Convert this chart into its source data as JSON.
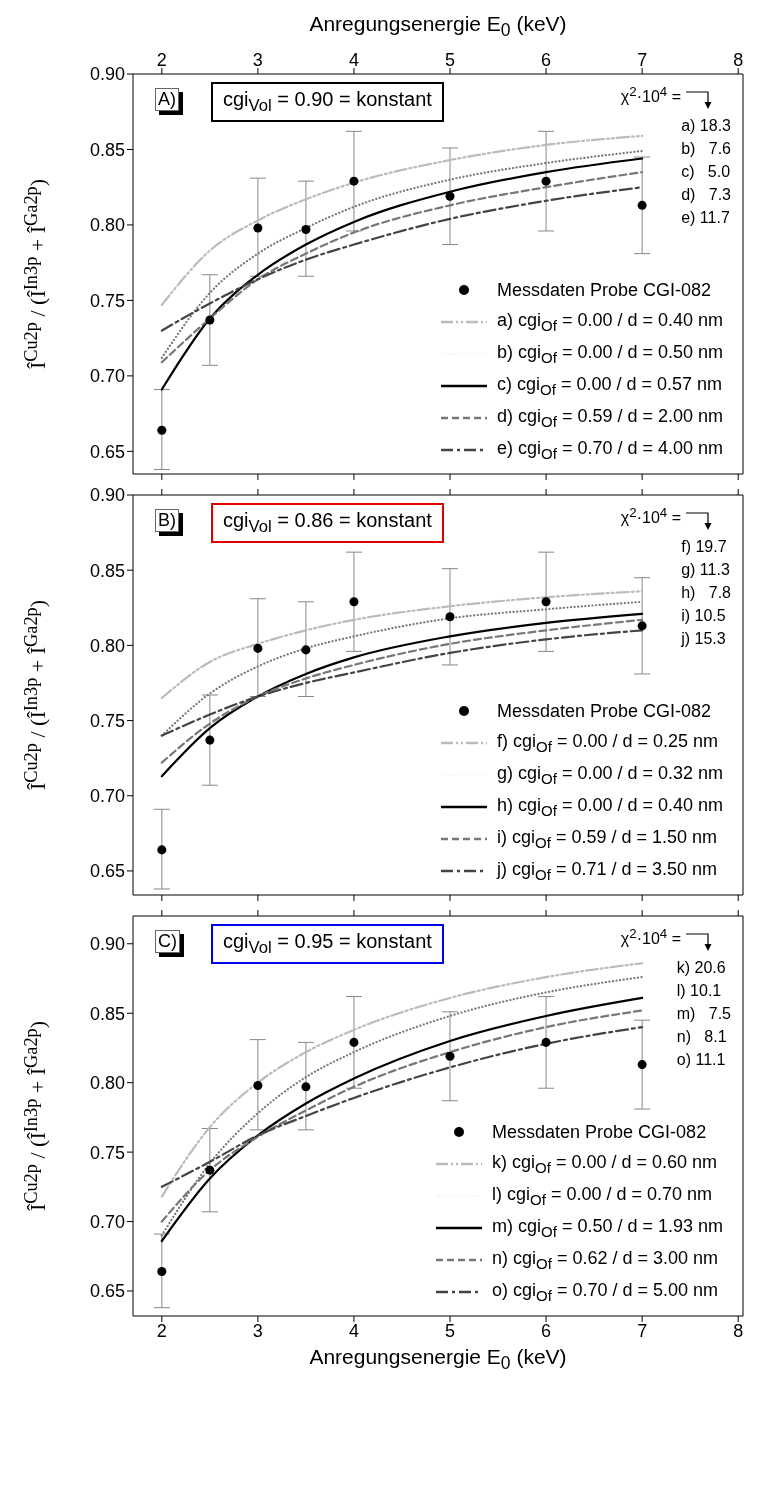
{
  "chart_data": [
    {
      "type": "line",
      "ylabel": "Î$^{Cu2p}$ / (Î$^{In3p}$ + Î$^{Ga2p}$)",
      "x2label": "Anregungsenergie E$_{0}$ (keV)",
      "xlim": [
        1.7,
        8.05
      ],
      "xticks": [
        2,
        3,
        4,
        5,
        6,
        7,
        8
      ],
      "x2lim": [
        1.7,
        8.05
      ],
      "x2ticks": [
        2,
        3,
        4,
        5,
        6,
        7,
        8
      ],
      "tick_labels": "y",
      "ylim": [
        0.635,
        0.9
      ],
      "yticks": [
        0.65,
        {
          "value": 0.7,
          "label": "0.70"
        },
        0.75,
        {
          "value": 0.8,
          "label": "0.80"
        },
        0.85,
        {
          "value": 0.9,
          "label": "0.90"
        }
      ],
      "legend": "bottom right",
      "annotations": [
        "A)",
        "cgi$_{Vol}$ = 0.90 = konstant",
        "χ$^{2}$·10$^{4}$ =",
        "a) 18.3",
        "b)   7.6",
        "c)   5.0",
        "d)   7.3",
        "e) 11.7"
      ],
      "series": [
        {
          "name": "Messdaten Probe CGI-082",
          "type": "scatter",
          "marker": "circle",
          "color": "#000000",
          "x": [
            2,
            2.5,
            3,
            3.5,
            4,
            5,
            6,
            7
          ],
          "values": [
            0.664,
            0.737,
            0.798,
            0.797,
            0.829,
            0.819,
            0.829,
            0.813
          ],
          "errors": [
            [
              0.638,
              0.691
            ],
            [
              0.707,
              0.767
            ],
            [
              0.766,
              0.831
            ],
            [
              0.766,
              0.829
            ],
            [
              0.796,
              0.862
            ],
            [
              0.787,
              0.851
            ],
            [
              0.796,
              0.862
            ],
            [
              0.781,
              0.845
            ]
          ]
        },
        {
          "name": "a) cgi$_{Of}$ = 0.00 / d = 0.40 nm",
          "color": "#bbbbbb",
          "line_style": "dashdotdot",
          "x": [
            2,
            2.5,
            3,
            3.5,
            4,
            5,
            6,
            7
          ],
          "values": [
            0.747,
            0.783,
            0.803,
            0.817,
            0.828,
            0.843,
            0.853,
            0.859
          ]
        },
        {
          "name": "b) cgi$_{Of}$ = 0.00 / d = 0.50 nm",
          "color": "#777777",
          "line_style": "dotted",
          "x": [
            2,
            2.5,
            3,
            3.5,
            4,
            5,
            6,
            7
          ],
          "values": [
            0.712,
            0.755,
            0.781,
            0.798,
            0.812,
            0.83,
            0.841,
            0.849
          ]
        },
        {
          "name": "c) cgi$_{Of}$ = 0.00 / d = 0.57 nm",
          "color": "#000000",
          "line_style": "solid",
          "x": [
            2,
            2.5,
            3,
            3.5,
            4,
            5,
            6,
            7
          ],
          "values": [
            0.691,
            0.738,
            0.767,
            0.787,
            0.802,
            0.822,
            0.835,
            0.844
          ]
        },
        {
          "name": "d) cgi$_{Of}$ = 0.59 / d = 2.00 nm",
          "color": "#777777",
          "line_style": "dashed",
          "x": [
            2,
            2.5,
            3,
            3.5,
            4,
            5,
            6,
            7
          ],
          "values": [
            0.709,
            0.738,
            0.764,
            0.781,
            0.795,
            0.813,
            0.825,
            0.835
          ]
        },
        {
          "name": "e) cgi$_{Of}$ = 0.70 / d = 4.00 nm",
          "color": "#444444",
          "line_style": "dashdot",
          "x": [
            2,
            2.5,
            3,
            3.5,
            4,
            5,
            6,
            7
          ],
          "values": [
            0.73,
            0.748,
            0.764,
            0.777,
            0.787,
            0.804,
            0.816,
            0.825
          ]
        }
      ]
    },
    {
      "type": "line",
      "ylabel": "Î$^{Cu2p}$ / (Î$^{In3p}$ + Î$^{Ga2p}$)",
      "xlim": [
        1.7,
        8.05
      ],
      "xticks": [
        2,
        3,
        4,
        5,
        6,
        7,
        8
      ],
      "tick_labels": "y",
      "ylim": [
        0.634,
        0.9
      ],
      "yticks": [
        0.65,
        {
          "value": 0.7,
          "label": "0.70"
        },
        0.75,
        {
          "value": 0.8,
          "label": "0.80"
        },
        0.85,
        {
          "value": 0.9,
          "label": "0.90"
        }
      ],
      "legend": "bottom right",
      "annotations": [
        "B)",
        "cgi$_{Vol}$ = 0.86 = konstant",
        "χ$^{2}$·10$^{4}$ =",
        "f) 19.7",
        "g) 11.3",
        "h)   7.8",
        "i) 10.5",
        "j) 15.3"
      ],
      "series": [
        {
          "name": "Messdaten Probe CGI-082",
          "type": "scatter",
          "marker": "circle",
          "color": "#000000",
          "x": [
            2,
            2.5,
            3,
            3.5,
            4,
            5,
            6,
            7
          ],
          "values": [
            0.664,
            0.737,
            0.798,
            0.797,
            0.829,
            0.819,
            0.829,
            0.813
          ],
          "errors": [
            [
              0.638,
              0.691
            ],
            [
              0.707,
              0.767
            ],
            [
              0.766,
              0.831
            ],
            [
              0.766,
              0.829
            ],
            [
              0.796,
              0.862
            ],
            [
              0.787,
              0.851
            ],
            [
              0.796,
              0.862
            ],
            [
              0.781,
              0.845
            ]
          ]
        },
        {
          "name": "f) cgi$_{Of}$ = 0.00 / d = 0.25 nm",
          "color": "#bbbbbb",
          "line_style": "dashdotdot",
          "x": [
            2,
            2.5,
            3,
            3.5,
            4,
            5,
            6,
            7
          ],
          "values": [
            0.765,
            0.789,
            0.801,
            0.81,
            0.817,
            0.826,
            0.832,
            0.836
          ]
        },
        {
          "name": "g) cgi$_{Of}$ = 0.00 / d = 0.32 nm",
          "color": "#777777",
          "line_style": "dotted",
          "x": [
            2,
            2.5,
            3,
            3.5,
            4,
            5,
            6,
            7
          ],
          "values": [
            0.74,
            0.768,
            0.786,
            0.798,
            0.806,
            0.818,
            0.824,
            0.829
          ]
        },
        {
          "name": "h) cgi$_{Of}$ = 0.00 / d = 0.40 nm",
          "color": "#000000",
          "line_style": "solid",
          "x": [
            2,
            2.5,
            3,
            3.5,
            4,
            5,
            6,
            7
          ],
          "values": [
            0.713,
            0.745,
            0.766,
            0.781,
            0.792,
            0.806,
            0.815,
            0.821
          ]
        },
        {
          "name": "i) cgi$_{Of}$ = 0.59 / d = 1.50 nm",
          "color": "#777777",
          "line_style": "dashed",
          "x": [
            2,
            2.5,
            3,
            3.5,
            4,
            5,
            6,
            7
          ],
          "values": [
            0.722,
            0.748,
            0.766,
            0.778,
            0.787,
            0.801,
            0.81,
            0.817
          ]
        },
        {
          "name": "j) cgi$_{Of}$ = 0.71 / d = 3.50 nm",
          "color": "#444444",
          "line_style": "dashdot",
          "x": [
            2,
            2.5,
            3,
            3.5,
            4,
            5,
            6,
            7
          ],
          "values": [
            0.74,
            0.754,
            0.766,
            0.775,
            0.782,
            0.795,
            0.804,
            0.81
          ]
        }
      ]
    },
    {
      "type": "line",
      "ylabel": "Î$^{Cu2p}$ / (Î$^{In3p}$ + Î$^{Ga2p}$)",
      "xlabel": "Anregungsenergie E$_{0}$ (keV)",
      "xlim": [
        1.7,
        8.05
      ],
      "xticks": [
        2,
        3,
        4,
        5,
        6,
        7,
        8
      ],
      "ylim": [
        0.632,
        0.92
      ],
      "yticks": [
        0.65,
        {
          "value": 0.7,
          "label": "0.70"
        },
        0.75,
        {
          "value": 0.8,
          "label": "0.80"
        },
        0.85,
        {
          "value": 0.9,
          "label": "0.90"
        }
      ],
      "legend": "bottom right",
      "annotations": [
        "C)",
        "cgi$_{Vol}$ = 0.95 = konstant",
        "χ$^{2}$·10$^{4}$ =",
        "k) 20.6",
        "l) 10.1",
        "m)   7.5",
        "n)   8.1",
        "o) 11.1"
      ],
      "series": [
        {
          "name": "Messdaten Probe CGI-082",
          "type": "scatter",
          "marker": "circle",
          "color": "#000000",
          "x": [
            2,
            2.5,
            3,
            3.5,
            4,
            5,
            6,
            7
          ],
          "values": [
            0.664,
            0.737,
            0.798,
            0.797,
            0.829,
            0.819,
            0.829,
            0.813
          ],
          "errors": [
            [
              0.638,
              0.691
            ],
            [
              0.707,
              0.767
            ],
            [
              0.766,
              0.831
            ],
            [
              0.766,
              0.829
            ],
            [
              0.796,
              0.862
            ],
            [
              0.787,
              0.851
            ],
            [
              0.796,
              0.862
            ],
            [
              0.781,
              0.845
            ]
          ]
        },
        {
          "name": "k) cgi$_{Of}$ = 0.00 / d = 0.60 nm",
          "color": "#bbbbbb",
          "line_style": "dashdotdot",
          "x": [
            2,
            2.5,
            3,
            3.5,
            4,
            5,
            6,
            7
          ],
          "values": [
            0.718,
            0.768,
            0.8,
            0.822,
            0.838,
            0.861,
            0.876,
            0.886
          ]
        },
        {
          "name": "l) cgi$_{Of}$ = 0.00 / d = 0.70 nm",
          "color": "#777777",
          "line_style": "dotted",
          "x": [
            2,
            2.5,
            3,
            3.5,
            4,
            5,
            6,
            7
          ],
          "values": [
            0.69,
            0.742,
            0.778,
            0.804,
            0.822,
            0.848,
            0.865,
            0.876
          ]
        },
        {
          "name": "m) cgi$_{Of}$ = 0.50 / d = 1.93 nm",
          "color": "#000000",
          "line_style": "solid",
          "x": [
            2,
            2.5,
            3,
            3.5,
            4,
            5,
            6,
            7
          ],
          "values": [
            0.686,
            0.731,
            0.762,
            0.785,
            0.803,
            0.83,
            0.848,
            0.861
          ]
        },
        {
          "name": "n) cgi$_{Of}$ = 0.62 / d = 3.00 nm",
          "color": "#777777",
          "line_style": "dashed",
          "x": [
            2,
            2.5,
            3,
            3.5,
            4,
            5,
            6,
            7
          ],
          "values": [
            0.7,
            0.737,
            0.761,
            0.78,
            0.797,
            0.822,
            0.84,
            0.852
          ]
        },
        {
          "name": "o) cgi$_{Of}$ = 0.70 / d = 5.00 nm",
          "color": "#444444",
          "line_style": "dashdot",
          "x": [
            2,
            2.5,
            3,
            3.5,
            4,
            5,
            6,
            7
          ],
          "values": [
            0.725,
            0.743,
            0.762,
            0.776,
            0.789,
            0.811,
            0.828,
            0.84
          ]
        }
      ]
    }
  ]
}
